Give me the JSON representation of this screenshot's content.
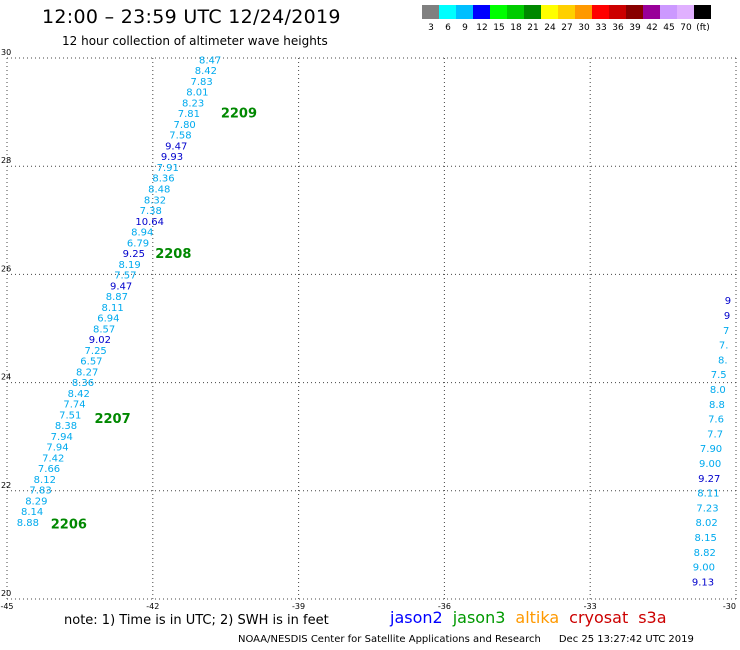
{
  "title": "12:00 – 23:59 UTC 12/24/2019",
  "subtitle": "12 hour collection of altimeter wave heights",
  "colorbar": {
    "colors": [
      "#808080",
      "#00ffff",
      "#00bfff",
      "#0000ff",
      "#00ff00",
      "#00cc00",
      "#008800",
      "#ffff00",
      "#ffd000",
      "#ff9900",
      "#ff0000",
      "#cc0000",
      "#880000",
      "#990099",
      "#cc99ff",
      "#e0b0ff",
      "#000000"
    ],
    "labels": [
      "3",
      "6",
      "9",
      "12",
      "15",
      "18",
      "21",
      "24",
      "27",
      "30",
      "33",
      "36",
      "39",
      "42",
      "45",
      "70",
      "(ft)"
    ]
  },
  "note": "note: 1) Time is in UTC; 2) SWH is in feet",
  "legend": [
    {
      "name": "jason2",
      "color": "#0000ff"
    },
    {
      "name": "jason3",
      "color": "#009900"
    },
    {
      "name": "altika",
      "color": "#ff9900"
    },
    {
      "name": "cryosat",
      "color": "#cc0000"
    },
    {
      "name": "s3a",
      "color": "#cc0000"
    }
  ],
  "credit": "NOAA/NESDIS Center for Satellite Applications and Research",
  "timestamp": "Dec 25 13:27:42 UTC 2019",
  "chart_data": {
    "type": "scatter",
    "xlim": [
      -45,
      -30
    ],
    "ylim": [
      20,
      30
    ],
    "x_ticks": [
      -45,
      -42,
      -39,
      -36,
      -33,
      -30
    ],
    "x_tick_labels": [
      "-45",
      "-42",
      "-39",
      "-36",
      "-33",
      "-30"
    ],
    "y_ticks": [
      20,
      22,
      24,
      26,
      28,
      30
    ],
    "y_tick_labels": [
      "20",
      "22",
      "24",
      "26",
      "28",
      "30"
    ],
    "grid": true,
    "colors": {
      "light": "#00aaee",
      "dark": "#0000cc",
      "time": "#008800"
    },
    "track_main": {
      "start": {
        "lon": -44.8,
        "lat": 21.35
      },
      "end": {
        "lon": -41.05,
        "lat": 29.9
      },
      "values": [
        "8.88",
        "8.14",
        "8.29",
        "7.83",
        "8.12",
        "7.66",
        "7.42",
        "7.94",
        "7.94",
        "8.38",
        "7.51",
        "7.74",
        "8.42",
        "8.36",
        "8.27",
        "6.57",
        "7.25",
        "9.02",
        "8.57",
        "6.94",
        "8.11",
        "8.87",
        "9.47",
        "7.57",
        "8.19",
        "9.25",
        "6.79",
        "8.94",
        "10.64",
        "7.38",
        "8.32",
        "8.48",
        "8.36",
        "7.91",
        "9.93",
        "9.47",
        "7.58",
        "7.80",
        "7.81",
        "8.23",
        "8.01",
        "7.83",
        "8.42",
        "8.47"
      ],
      "dark": [
        17,
        22,
        25,
        28,
        34,
        35
      ]
    },
    "track_right": {
      "start": {
        "lon": -30.45,
        "lat": 20.25
      },
      "end": {
        "lon": -30.1,
        "lat": 25.45
      },
      "values": [
        "9.13",
        "9.00",
        "8.82",
        "8.15",
        "8.02",
        "7.23",
        "8.11",
        "9.27",
        "9.00",
        "7.90",
        "7.7",
        "7.6",
        "8.8",
        "8.0",
        "7.5",
        "8.",
        "7.",
        "7",
        "9",
        "9"
      ],
      "dark": [
        0,
        7,
        18,
        19
      ]
    },
    "time_labels": [
      {
        "text": "2206",
        "lon": -44.1,
        "lat": 21.3
      },
      {
        "text": "2207",
        "lon": -43.2,
        "lat": 23.25
      },
      {
        "text": "2208",
        "lon": -41.95,
        "lat": 26.3
      },
      {
        "text": "2209",
        "lon": -40.6,
        "lat": 28.9
      }
    ]
  }
}
